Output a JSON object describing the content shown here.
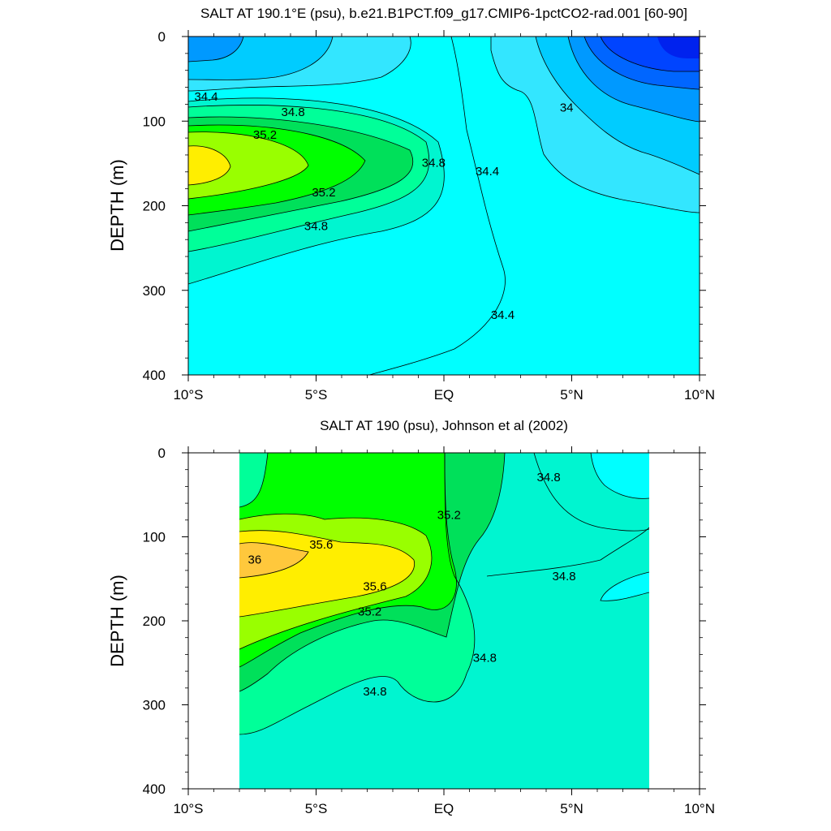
{
  "panel_titles": [
    "SALT AT 190.1°E (psu), b.e21.B1PCT.f09_g17.CMIP6-1pctCO2-rad.001 [60-90]",
    "SALT AT 190 (psu), Johnson et al (2002)"
  ],
  "colors": {
    "blue_deep": "#0033ff",
    "blue": "#0066ff",
    "blue_mid": "#0099ff",
    "sky": "#00ccff",
    "cyan_light": "#33e6ff",
    "cyan": "#00ffff",
    "aqua_green": "#00f5d0",
    "green_light": "#00ff99",
    "green_mid": "#00e05a",
    "green": "#00ff00",
    "lime": "#99ff00",
    "yellow": "#ffee00",
    "orange": "#ffc83c"
  },
  "chart_data": [
    {
      "type": "contour",
      "title": "SALT AT 190.1°E (psu), b.e21.B1PCT.f09_g17.CMIP6-1pctCO2-rad.001 [60-90]",
      "xlabel": "",
      "ylabel": "DEPTH (m)",
      "x_tick_labels": [
        "10°S",
        "5°S",
        "EQ",
        "5°N",
        "10°N"
      ],
      "x_ticks": [
        -10,
        -5,
        0,
        5,
        10
      ],
      "y_tick_labels": [
        "0",
        "100",
        "200",
        "300",
        "400"
      ],
      "y_ticks": [
        0,
        100,
        200,
        300,
        400
      ],
      "xlim": [
        -10,
        10
      ],
      "ylim": [
        400,
        0
      ],
      "contour_labels": [
        {
          "text": "34.4",
          "x": -9.3,
          "y": 72
        },
        {
          "text": "34.8",
          "x": -5.9,
          "y": 90
        },
        {
          "text": "35.2",
          "x": -7.0,
          "y": 117
        },
        {
          "text": "34",
          "x": 4.8,
          "y": 85
        },
        {
          "text": "34.8",
          "x": -0.4,
          "y": 150
        },
        {
          "text": "34.4",
          "x": 1.7,
          "y": 160
        },
        {
          "text": "35.2",
          "x": -4.7,
          "y": 185
        },
        {
          "text": "34.8",
          "x": -5.0,
          "y": 225
        },
        {
          "text": "34.4",
          "x": 2.3,
          "y": 330
        }
      ]
    },
    {
      "type": "contour",
      "title": "SALT AT 190 (psu), Johnson et al (2002)",
      "xlabel": "",
      "ylabel": "DEPTH (m)",
      "x_tick_labels": [
        "10°S",
        "5°S",
        "EQ",
        "5°N",
        "10°N"
      ],
      "x_ticks": [
        -10,
        -5,
        0,
        5,
        10
      ],
      "y_tick_labels": [
        "0",
        "100",
        "200",
        "300",
        "400"
      ],
      "y_ticks": [
        0,
        100,
        200,
        300,
        400
      ],
      "xlim": [
        -10,
        10
      ],
      "ylim": [
        400,
        0
      ],
      "data_xrange": [
        -8,
        8
      ],
      "contour_labels": [
        {
          "text": "34.8",
          "x": 4.1,
          "y": 30
        },
        {
          "text": "35.2",
          "x": 0.2,
          "y": 75
        },
        {
          "text": "35.6",
          "x": -4.8,
          "y": 110
        },
        {
          "text": "36",
          "x": -7.4,
          "y": 128
        },
        {
          "text": "35.6",
          "x": -2.7,
          "y": 160
        },
        {
          "text": "34.8",
          "x": 4.7,
          "y": 148
        },
        {
          "text": "35.2",
          "x": -2.9,
          "y": 190
        },
        {
          "text": "34.8",
          "x": 1.6,
          "y": 245
        },
        {
          "text": "34.8",
          "x": -2.7,
          "y": 285
        }
      ]
    }
  ]
}
